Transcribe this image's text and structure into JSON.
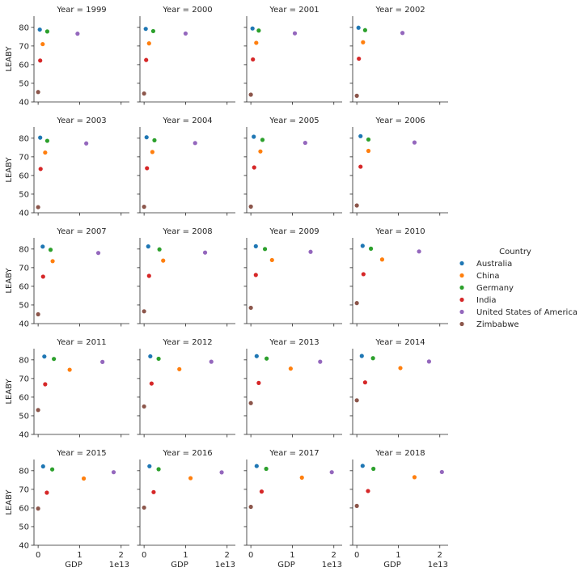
{
  "chart_data": {
    "type": "scatter",
    "facet_by": "Year",
    "facet_title_template": "Year = {v}",
    "xlabel": "GDP",
    "ylabel": "LEABY",
    "x_offset_label": "1e13",
    "xlim": [
      -0.1,
      2.2
    ],
    "x_ticks": [
      0,
      1,
      2
    ],
    "x_tick_labels": [
      "0",
      "1",
      "2"
    ],
    "ylim": [
      40,
      86
    ],
    "y_ticks": [
      40,
      50,
      60,
      70,
      80
    ],
    "y_tick_labels": [
      "40",
      "50",
      "60",
      "70",
      "80"
    ],
    "legend": {
      "title": "Country",
      "placement": "right"
    },
    "series": [
      {
        "name": "Australia",
        "color": "#1f77b4",
        "x": [
          0.04,
          0.04,
          0.04,
          0.04,
          0.05,
          0.06,
          0.07,
          0.09,
          0.11,
          0.1,
          0.12,
          0.14,
          0.15,
          0.15,
          0.14,
          0.12,
          0.12,
          0.13,
          0.14,
          0.14
        ],
        "y": [
          78.8,
          79.2,
          79.4,
          79.8,
          80.3,
          80.5,
          80.8,
          81.1,
          81.3,
          81.4,
          81.5,
          81.7,
          81.8,
          81.9,
          82.0,
          82.1,
          82.3,
          82.4,
          82.5,
          82.6
        ]
      },
      {
        "name": "China",
        "color": "#ff7f0e",
        "x": [
          0.11,
          0.12,
          0.13,
          0.15,
          0.17,
          0.2,
          0.23,
          0.28,
          0.35,
          0.46,
          0.51,
          0.61,
          0.76,
          0.85,
          0.96,
          1.05,
          1.1,
          1.12,
          1.23,
          1.39
        ],
        "y": [
          71.0,
          71.4,
          71.7,
          72.0,
          72.3,
          72.6,
          72.9,
          73.2,
          73.5,
          73.8,
          74.1,
          74.4,
          74.7,
          75.0,
          75.3,
          75.6,
          75.8,
          76.0,
          76.3,
          76.5
        ]
      },
      {
        "name": "Germany",
        "color": "#2ca02c",
        "x": [
          0.22,
          0.22,
          0.19,
          0.2,
          0.22,
          0.25,
          0.28,
          0.28,
          0.3,
          0.37,
          0.34,
          0.34,
          0.38,
          0.35,
          0.38,
          0.39,
          0.34,
          0.35,
          0.37,
          0.4
        ],
        "y": [
          77.8,
          78.0,
          78.3,
          78.5,
          78.6,
          78.9,
          79.1,
          79.3,
          79.6,
          79.8,
          80.0,
          80.2,
          80.5,
          80.6,
          80.7,
          80.9,
          80.7,
          80.8,
          81.0,
          81.0
        ]
      },
      {
        "name": "India",
        "color": "#d62728",
        "x": [
          0.05,
          0.05,
          0.05,
          0.05,
          0.06,
          0.07,
          0.08,
          0.09,
          0.12,
          0.12,
          0.12,
          0.16,
          0.17,
          0.18,
          0.19,
          0.2,
          0.21,
          0.23,
          0.26,
          0.27
        ],
        "y": [
          62.2,
          62.5,
          62.8,
          63.2,
          63.5,
          63.9,
          64.3,
          64.7,
          65.2,
          65.6,
          66.1,
          66.5,
          66.9,
          67.3,
          67.6,
          67.9,
          68.2,
          68.5,
          68.8,
          69.1
        ]
      },
      {
        "name": "United States of America",
        "color": "#9467bd",
        "x": [
          0.95,
          1.0,
          1.06,
          1.1,
          1.16,
          1.23,
          1.31,
          1.39,
          1.45,
          1.47,
          1.44,
          1.5,
          1.55,
          1.62,
          1.67,
          1.74,
          1.82,
          1.87,
          1.95,
          2.05
        ],
        "y": [
          76.6,
          76.7,
          76.8,
          77.0,
          77.2,
          77.4,
          77.5,
          77.7,
          77.9,
          78.1,
          78.5,
          78.7,
          78.9,
          79.0,
          79.0,
          79.1,
          79.2,
          79.1,
          79.2,
          79.3
        ]
      },
      {
        "name": "Zimbabwe",
        "color": "#8c564b",
        "x": [
          0.0,
          0.0,
          0.0,
          0.0,
          0.0,
          0.0,
          0.0,
          0.0,
          0.0,
          0.0,
          0.0,
          0.0,
          0.0,
          0.0,
          0.0,
          0.0,
          0.0,
          0.0,
          0.0,
          0.0
        ],
        "y": [
          45.3,
          44.5,
          43.9,
          43.3,
          43.0,
          43.2,
          43.3,
          43.9,
          45.0,
          46.6,
          48.5,
          51.0,
          53.1,
          55.0,
          56.8,
          58.3,
          59.7,
          60.2,
          60.6,
          61.1
        ]
      }
    ],
    "facets": [
      {
        "year": "1999"
      },
      {
        "year": "2000"
      },
      {
        "year": "2001"
      },
      {
        "year": "2002"
      },
      {
        "year": "2003"
      },
      {
        "year": "2004"
      },
      {
        "year": "2005"
      },
      {
        "year": "2006"
      },
      {
        "year": "2007"
      },
      {
        "year": "2008"
      },
      {
        "year": "2009"
      },
      {
        "year": "2010"
      },
      {
        "year": "2011"
      },
      {
        "year": "2012"
      },
      {
        "year": "2013"
      },
      {
        "year": "2014"
      },
      {
        "year": "2015"
      },
      {
        "year": "2016"
      },
      {
        "year": "2017"
      },
      {
        "year": "2018"
      }
    ]
  }
}
